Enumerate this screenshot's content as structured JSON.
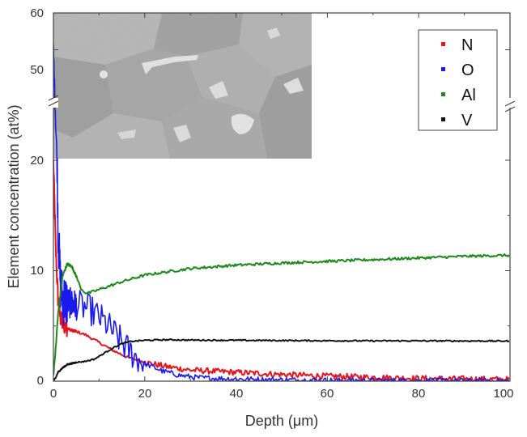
{
  "chart_data": {
    "type": "line",
    "xlabel": "Depth (μm)",
    "ylabel": "Element concentration (at%)",
    "xlim": [
      0,
      100
    ],
    "ylim_lower": [
      0,
      20
    ],
    "ylim_upper": [
      20,
      60
    ],
    "axis_break": true,
    "x_ticks": [
      "0",
      "20",
      "40",
      "60",
      "80",
      "100"
    ],
    "y_ticks": [
      "0",
      "10",
      "20",
      "50",
      "60"
    ],
    "legend_position": "top-right",
    "inset": "grayscale micrograph (top-left)",
    "series": [
      {
        "name": "N",
        "color": "#e8141c",
        "x": [
          0,
          0.5,
          1,
          1.5,
          2,
          3,
          4,
          5,
          7,
          10,
          13,
          16,
          20,
          25,
          30,
          40,
          50,
          60,
          70,
          80,
          90,
          100
        ],
        "y": [
          20,
          12,
          7.5,
          5.8,
          5.2,
          4.8,
          4.6,
          4.5,
          4.2,
          3.5,
          2.8,
          2.2,
          1.7,
          1.3,
          1.0,
          0.8,
          0.6,
          0.45,
          0.35,
          0.25,
          0.2,
          0.15
        ]
      },
      {
        "name": "O",
        "color": "#1a1aef",
        "x": [
          0,
          0.5,
          1,
          1.5,
          2,
          3,
          4,
          6,
          8,
          10,
          12,
          14,
          16,
          18,
          20,
          24,
          28,
          32,
          40,
          50,
          60,
          70,
          80,
          90,
          100
        ],
        "y": [
          50,
          30,
          14,
          9,
          7.5,
          7.2,
          7,
          6.8,
          6.5,
          5.8,
          5,
          4,
          3,
          2.2,
          1.6,
          0.9,
          0.5,
          0.3,
          0.2,
          0.12,
          0.08,
          0.05,
          0.04,
          0.03,
          0.02
        ]
      },
      {
        "name": "Al",
        "color": "#1b8a1b",
        "x": [
          0,
          0.5,
          1,
          2,
          3,
          4,
          5,
          6,
          7,
          8,
          10,
          15,
          20,
          30,
          40,
          50,
          60,
          70,
          80,
          90,
          100
        ],
        "y": [
          0.5,
          3,
          6,
          9.5,
          10.6,
          10.4,
          9.5,
          8.4,
          8.0,
          8.0,
          8.3,
          9.0,
          9.6,
          10.2,
          10.5,
          10.7,
          10.85,
          11.0,
          11.15,
          11.3,
          11.4
        ]
      },
      {
        "name": "V",
        "color": "#111111",
        "x": [
          0,
          0.5,
          1,
          2,
          3,
          5,
          7,
          9,
          11,
          13,
          15,
          17,
          20,
          25,
          30,
          40,
          50,
          60,
          70,
          80,
          90,
          100
        ],
        "y": [
          0,
          0.3,
          0.8,
          1.2,
          1.5,
          1.7,
          1.8,
          2.0,
          2.5,
          3.0,
          3.4,
          3.6,
          3.7,
          3.75,
          3.72,
          3.7,
          3.68,
          3.66,
          3.65,
          3.65,
          3.64,
          3.63
        ]
      }
    ]
  }
}
